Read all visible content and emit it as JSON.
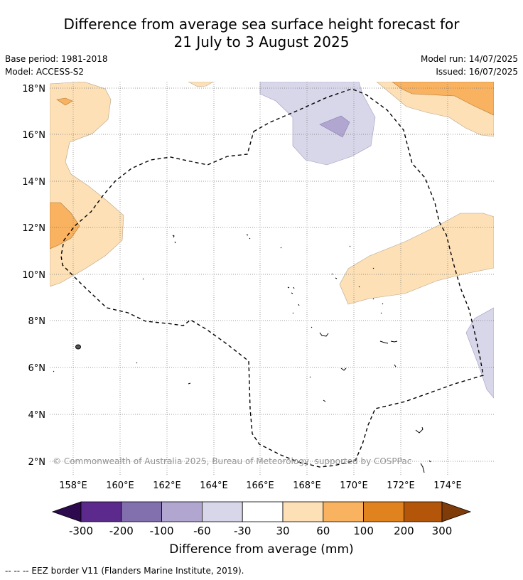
{
  "title_line1": "Difference from average sea surface height forecast for",
  "title_line2": "21 July to 3 August 2025",
  "meta": {
    "base_period": "Base period: 1981-2018",
    "model": "Model: ACCESS-S2",
    "model_run": "Model run: 14/07/2025",
    "issued": "Issued: 16/07/2025"
  },
  "map": {
    "lat_labels": [
      "18°N",
      "16°N",
      "14°N",
      "12°N",
      "10°N",
      "8°N",
      "6°N",
      "4°N",
      "2°N"
    ],
    "lon_labels": [
      "158°E",
      "160°E",
      "162°E",
      "164°E",
      "166°E",
      "168°E",
      "170°E",
      "172°E",
      "174°E"
    ],
    "copyright": "© Commonwealth of Australia 2025, Bureau of Meteorology, supported by COSPPac"
  },
  "colorbar": {
    "colors": [
      "#2d0a4e",
      "#5b2a8c",
      "#8270ae",
      "#b0a6d0",
      "#d8d7ea",
      "#ffffff",
      "#fde0b6",
      "#f9b25f",
      "#e0821e",
      "#b3560a",
      "#7f3b08"
    ],
    "ticks": [
      "-300",
      "-200",
      "-100",
      "-60",
      "-30",
      "30",
      "60",
      "100",
      "200",
      "300"
    ],
    "label": "Difference from average (mm)"
  },
  "footer": "--  --  -- EEZ border V11 (Flanders Marine Institute, 2019)."
}
